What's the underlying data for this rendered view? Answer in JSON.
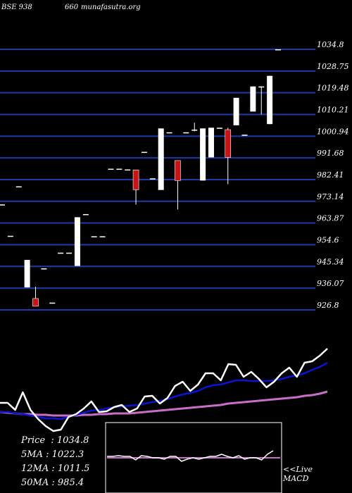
{
  "header": {
    "code": "BSE 938",
    "code_secondary": "660",
    "site": "munafasutra.org"
  },
  "stats": {
    "price_label": "Price",
    "price_value": "1034.8",
    "ma5_label": "5MA",
    "ma5_value": "1022.3",
    "ma12_label": "12MA",
    "ma12_value": "1011.5",
    "ma50_label": "50MA",
    "ma50_value": "985.4"
  },
  "macd": {
    "line1": "<<Live",
    "line2": "MACD"
  },
  "colors": {
    "background": "#000000",
    "grid": "#1e3aa8",
    "bull": "#ffffff",
    "bear": "#c81414",
    "ma_fast": "#0a14d4",
    "ma_slow": "#c86ec8",
    "close_line": "#ffffff"
  },
  "chart_data": {
    "type": "candlestick",
    "y_ticks": [
      "1034.8",
      "1028.75",
      "1019.48",
      "1010.21",
      "1000.94",
      "991.68",
      "982.41",
      "973.14",
      "963.87",
      "954.6",
      "945.34",
      "936.07",
      "926.8"
    ],
    "ylim": [
      926.8,
      1034.8
    ],
    "candles": [
      {
        "o": 970.5,
        "h": 970.5,
        "l": 970.5,
        "c": 970.5
      },
      {
        "o": 957.5,
        "h": 957.5,
        "l": 957.5,
        "c": 957.5
      },
      {
        "o": 978.0,
        "h": 978.0,
        "l": 978.0,
        "c": 978.0
      },
      {
        "o": 936.1,
        "h": 947.5,
        "l": 936.1,
        "c": 947.5
      },
      {
        "o": 931.5,
        "h": 936.4,
        "l": 928.3,
        "c": 928.3
      },
      {
        "o": 944.0,
        "h": 944.0,
        "l": 944.0,
        "c": 944.0
      },
      {
        "o": 929.8,
        "h": 929.8,
        "l": 929.8,
        "c": 929.8
      },
      {
        "o": 950.5,
        "h": 950.5,
        "l": 950.5,
        "c": 950.5
      },
      {
        "o": 950.5,
        "h": 950.5,
        "l": 950.5,
        "c": 950.5
      },
      {
        "o": 945.0,
        "h": 965.2,
        "l": 945.0,
        "c": 965.2
      },
      {
        "o": 966.5,
        "h": 966.5,
        "l": 966.5,
        "c": 966.5
      },
      {
        "o": 957.3,
        "h": 957.3,
        "l": 957.3,
        "c": 957.3
      },
      {
        "o": 957.3,
        "h": 957.3,
        "l": 957.3,
        "c": 957.3
      },
      {
        "o": 985.3,
        "h": 985.3,
        "l": 985.3,
        "c": 985.3
      },
      {
        "o": 985.3,
        "h": 985.3,
        "l": 985.3,
        "c": 985.3
      },
      {
        "o": 985.0,
        "h": 985.0,
        "l": 985.0,
        "c": 985.0
      },
      {
        "o": 984.8,
        "h": 984.8,
        "l": 970.4,
        "c": 976.6
      },
      {
        "o": 992.3,
        "h": 992.3,
        "l": 992.3,
        "c": 992.3
      },
      {
        "o": 981.3,
        "h": 981.3,
        "l": 981.3,
        "c": 981.3
      },
      {
        "o": 976.5,
        "h": 1002.0,
        "l": 976.5,
        "c": 1002.0
      },
      {
        "o": 1000.4,
        "h": 1000.4,
        "l": 1000.4,
        "c": 1000.4
      },
      {
        "o": 988.7,
        "h": 988.7,
        "l": 968.4,
        "c": 980.4
      },
      {
        "o": 1000.4,
        "h": 1000.4,
        "l": 1000.4,
        "c": 1000.4
      },
      {
        "o": 1001.5,
        "h": 1004.4,
        "l": 1000.8,
        "c": 1001.5
      },
      {
        "o": 980.4,
        "h": 1002.0,
        "l": 980.4,
        "c": 1002.0
      },
      {
        "o": 990.0,
        "h": 1002.3,
        "l": 990.0,
        "c": 1002.3
      },
      {
        "o": 1002.3,
        "h": 1002.3,
        "l": 1002.3,
        "c": 1002.3
      },
      {
        "o": 1001.5,
        "h": 1002.3,
        "l": 978.9,
        "c": 990.0
      },
      {
        "o": 1003.3,
        "h": 1014.7,
        "l": 1003.3,
        "c": 1014.7
      },
      {
        "o": 999.4,
        "h": 999.4,
        "l": 999.4,
        "c": 999.4
      },
      {
        "o": 1009.0,
        "h": 1019.4,
        "l": 1009.0,
        "c": 1019.4
      },
      {
        "o": 1019.4,
        "h": 1019.4,
        "l": 1007.8,
        "c": 1019.4
      },
      {
        "o": 1003.8,
        "h": 1023.8,
        "l": 1003.8,
        "c": 1023.8
      },
      {
        "o": 1034.8,
        "h": 1034.8,
        "l": 1034.8,
        "c": 1034.8
      }
    ],
    "close_line": [
      572,
      572,
      582,
      557,
      582,
      595,
      605,
      612,
      610,
      592,
      588,
      580,
      570,
      585,
      584,
      578,
      575,
      585,
      580,
      563,
      562,
      573,
      565,
      548,
      542,
      555,
      546,
      530,
      530,
      540,
      517,
      518,
      535,
      528,
      538,
      550,
      542,
      530,
      522,
      535,
      515,
      513,
      505,
      495
    ],
    "ma_fast_line": [
      585,
      585,
      587,
      588,
      590,
      592,
      594,
      594,
      595,
      592,
      589,
      586,
      583,
      582,
      580,
      578,
      577,
      576,
      575,
      573,
      571,
      569,
      567,
      563,
      560,
      558,
      555,
      550,
      547,
      546,
      543,
      540,
      540,
      541,
      541,
      541,
      540,
      538,
      535,
      533,
      530,
      525,
      521,
      515
    ],
    "ma_slow_line": [
      585,
      586,
      587,
      588,
      588,
      589,
      589,
      590,
      590,
      590,
      590,
      589,
      589,
      588,
      588,
      587,
      587,
      587,
      586,
      585,
      584,
      583,
      582,
      581,
      580,
      579,
      578,
      577,
      576,
      575,
      573,
      572,
      571,
      570,
      569,
      568,
      567,
      566,
      565,
      564,
      562,
      561,
      559,
      556
    ],
    "macd_line": [
      648,
      648,
      647,
      648,
      648,
      653,
      647,
      648,
      650,
      650,
      652,
      648,
      648,
      655,
      652,
      650,
      652,
      650,
      648,
      648,
      645,
      648,
      650,
      647,
      652,
      650,
      650,
      653,
      645,
      640
    ],
    "macd_signal": 650
  }
}
